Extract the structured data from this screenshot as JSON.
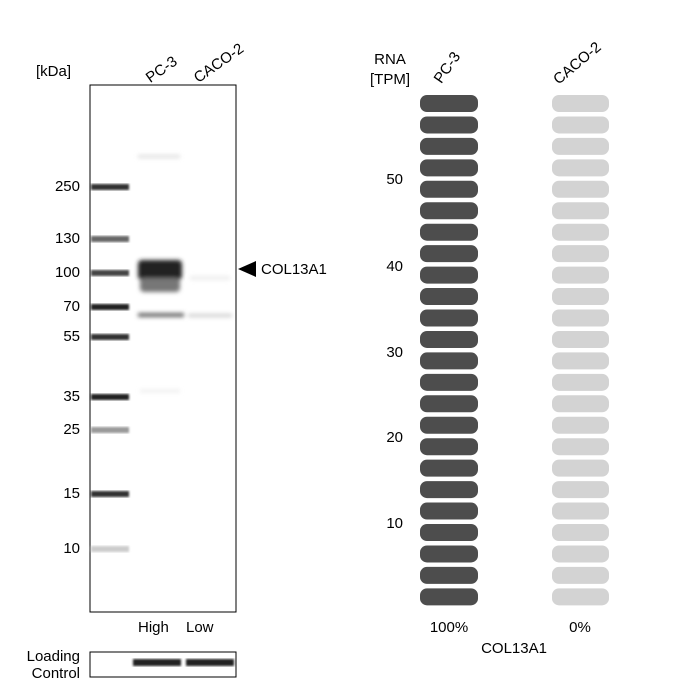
{
  "western_blot": {
    "unit_label": "[kDa]",
    "lanes": [
      "PC-3",
      "CACO-2"
    ],
    "markers": [
      "250",
      "130",
      "100",
      "70",
      "55",
      "35",
      "25",
      "15",
      "10"
    ],
    "target_label": "COL13A1",
    "lane_levels": [
      "High",
      "Low"
    ],
    "loading_control": [
      "Loading",
      "Control"
    ]
  },
  "rna": {
    "axis_title": [
      "RNA",
      "[TPM]"
    ],
    "lanes": [
      "PC-3",
      "CACO-2"
    ],
    "yticks": [
      "50",
      "40",
      "30",
      "20",
      "10"
    ],
    "percentages": [
      "100%",
      "0%"
    ],
    "gene": "COL13A1"
  }
}
